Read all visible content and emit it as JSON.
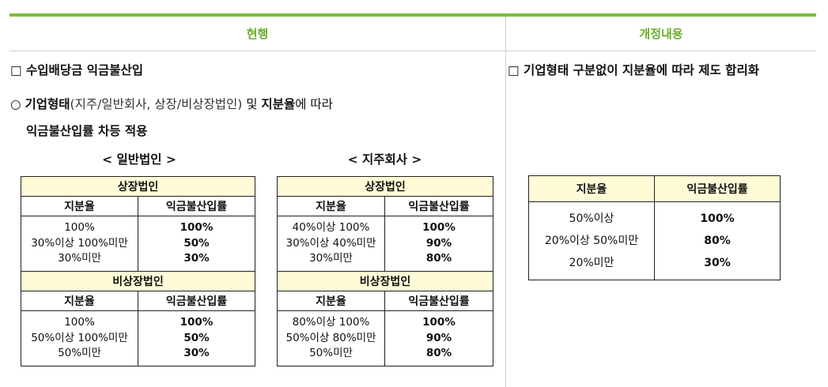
{
  "header": {
    "current_label": "현행",
    "revised_label": "개정내용"
  },
  "left": {
    "section_title": "□ 수입배당금 익금불산입",
    "bullet_mark": "○",
    "bullet_bold1": "기업형태",
    "bullet_paren": "(지주/일반회사, 상장/비상장법인)",
    "bullet_mid": " 및 ",
    "bullet_bold2": "지분율",
    "bullet_tail": "에 따라",
    "bullet_line2": "익금불산입률 차등 적용",
    "general": {
      "title": "< 일반법인 >",
      "listed_title": "상장법인",
      "unlisted_title": "비상장법인",
      "col_share": "지분율",
      "col_rate": "익금불산입률",
      "listed_shares": [
        "100%",
        "30%이상 100%미만",
        "30%미만"
      ],
      "listed_rates": [
        "100%",
        "50%",
        "30%"
      ],
      "unlisted_shares": [
        "100%",
        "50%이상 100%미만",
        "50%미만"
      ],
      "unlisted_rates": [
        "100%",
        "50%",
        "30%"
      ]
    },
    "holding": {
      "title": "< 지주회사 >",
      "listed_title": "상장법인",
      "unlisted_title": "비상장법인",
      "col_share": "지분율",
      "col_rate": "익금불산입률",
      "listed_shares": [
        "40%이상 100%",
        "30%이상 40%미만",
        "30%미만"
      ],
      "listed_rates": [
        "100%",
        "90%",
        "80%"
      ],
      "unlisted_shares": [
        "80%이상 100%",
        "50%이상 80%미만",
        "50%미만"
      ],
      "unlisted_rates": [
        "100%",
        "90%",
        "80%"
      ]
    }
  },
  "right": {
    "section_title": "□ 기업형태 구분없이 지분율에 따라 제도 합리화",
    "col_share": "지분율",
    "col_rate": "익금불산입률",
    "shares": [
      "50%이상",
      "20%이상 50%미만",
      "20%미만"
    ],
    "rates": [
      "100%",
      "80%",
      "30%"
    ]
  }
}
